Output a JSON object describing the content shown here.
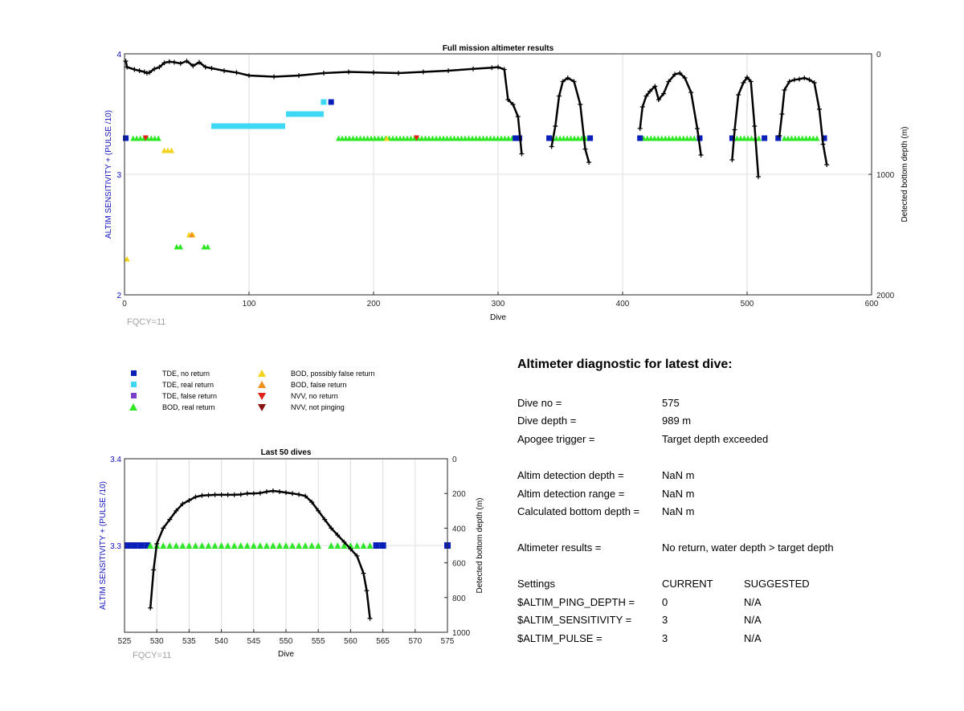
{
  "colors": {
    "tde_no_return": "#0a1fb8",
    "tde_real_return": "#3ed8f5",
    "tde_false_return": "#7a3fc8",
    "bod_real_return": "#2ee826",
    "bod_possibly_false": "#f5d21a",
    "bod_false_return": "#f0901a",
    "nvv_no_return": "#e0221a",
    "nvv_not_pinging": "#8a1010",
    "axis_left": "#1010c0",
    "fqcy": "#a0a0a0"
  },
  "legend": [
    {
      "label": "TDE, no return",
      "shape": "square",
      "color_key": "tde_no_return"
    },
    {
      "label": "TDE, real return",
      "shape": "square",
      "color_key": "tde_real_return"
    },
    {
      "label": "TDE, false return",
      "shape": "square",
      "color_key": "tde_false_return"
    },
    {
      "label": "BOD, real return",
      "shape": "triangle-up",
      "color_key": "bod_real_return"
    },
    {
      "label": "BOD, possibly false return",
      "shape": "triangle-up",
      "color_key": "bod_possibly_false"
    },
    {
      "label": "BOD, false return",
      "shape": "triangle-up",
      "color_key": "bod_false_return"
    },
    {
      "label": "NVV, no return",
      "shape": "triangle-down",
      "color_key": "nvv_no_return"
    },
    {
      "label": "NVV, not pinging",
      "shape": "triangle-down",
      "color_key": "nvv_not_pinging"
    }
  ],
  "diagnostic": {
    "title": "Altimeter diagnostic for latest dive:",
    "dive_no_label": "Dive no =",
    "dive_no": "575",
    "dive_depth_label": "Dive depth =",
    "dive_depth": "989 m",
    "apogee_label": "Apogee trigger =",
    "apogee": "Target depth exceeded",
    "altim_det_depth_label": "Altim detection depth =",
    "altim_det_depth": "NaN m",
    "altim_det_range_label": "Altim detection range =",
    "altim_det_range": "NaN m",
    "calc_bottom_label": "Calculated bottom depth =",
    "calc_bottom": "NaN m",
    "results_label": "Altimeter results =",
    "results": "No return, water depth > target depth",
    "settings_label": "Settings",
    "current_label": "CURRENT",
    "suggested_label": "SUGGESTED",
    "ping_depth_label": "$ALTIM_PING_DEPTH =",
    "ping_depth_current": "0",
    "ping_depth_suggested": "N/A",
    "sensitivity_label": "$ALTIM_SENSITIVITY =",
    "sensitivity_current": "3",
    "sensitivity_suggested": "N/A",
    "pulse_label": "$ALTIM_PULSE =",
    "pulse_current": "3",
    "pulse_suggested": "N/A"
  },
  "chart_data": [
    {
      "type": "scatter",
      "title": "Full mission altimeter results",
      "xlabel": "Dive",
      "ylabel": "ALTIM SENSITIVITY + (PULSE /10)",
      "y2label": "Detected bottom depth (m)",
      "xlim": [
        0,
        600
      ],
      "ylim": [
        2,
        4
      ],
      "y2lim": [
        0,
        2000
      ],
      "xticks": [
        0,
        100,
        200,
        300,
        400,
        500,
        600
      ],
      "yticks": [
        2,
        3,
        4
      ],
      "y2ticks": [
        0,
        1000,
        2000
      ],
      "y2_reversed": true,
      "grid": true,
      "note": "FQCY=11",
      "series": [
        {
          "name": "BOD, real return",
          "color_key": "bod_real_return",
          "marker": "triangle-up",
          "ranges": [
            [
              5,
              31,
              3.3
            ],
            [
              170,
              320,
              3.3
            ],
            [
              342,
              372,
              3.3
            ],
            [
              415,
              460,
              3.3
            ],
            [
              490,
              512,
              3.3
            ],
            [
              528,
              560,
              3.3
            ],
            [
              40,
              48,
              2.4
            ],
            [
              62,
              70,
              2.4
            ]
          ]
        },
        {
          "name": "TDE, no return",
          "color_key": "tde_no_return",
          "marker": "square",
          "ranges": [
            [
              0,
              2,
              3.3
            ],
            [
              312,
              322,
              3.3
            ],
            [
              340,
              342,
              3.3
            ],
            [
              372,
              376,
              3.3
            ],
            [
              413,
              415,
              3.3
            ],
            [
              460,
              466,
              3.3
            ],
            [
              487,
              489,
              3.3
            ],
            [
              512,
              516,
              3.3
            ],
            [
              524,
              526,
              3.3
            ],
            [
              560,
              564,
              3.3
            ],
            [
              78,
              79,
              3.4
            ],
            [
              104,
              105,
              3.4
            ],
            [
              122,
              123,
              3.4
            ],
            [
              137,
              138,
              3.5
            ],
            [
              164,
              170,
              3.6
            ]
          ]
        },
        {
          "name": "TDE, real return",
          "color_key": "tde_real_return",
          "marker": "square",
          "ranges": [
            [
              70,
              131,
              3.4
            ],
            [
              130,
              161,
              3.5
            ],
            [
              158,
              165,
              3.6
            ]
          ]
        },
        {
          "name": "BOD, possibly false return",
          "color_key": "bod_possibly_false",
          "marker": "triangle-up",
          "ranges": [
            [
              0,
              4,
              2.3
            ],
            [
              30,
              41,
              3.2
            ],
            [
              50,
              59,
              2.5
            ],
            [
              210,
              211,
              3.3
            ]
          ]
        },
        {
          "name": "BOD, false return",
          "color_key": "bod_false_return",
          "marker": "triangle-up",
          "ranges": [
            [
              52,
              58,
              2.5
            ]
          ]
        },
        {
          "name": "NVV, no return",
          "color_key": "nvv_no_return",
          "marker": "triangle-down",
          "ranges": [
            [
              15,
              21,
              3.3
            ],
            [
              234,
              235,
              3.3
            ]
          ]
        }
      ],
      "depth_segments": [
        [
          [
            1,
            60
          ],
          [
            2,
            110
          ],
          [
            8,
            130
          ],
          [
            12,
            140
          ],
          [
            16,
            150
          ],
          [
            18,
            160
          ],
          [
            20,
            155
          ],
          [
            24,
            125
          ],
          [
            28,
            110
          ],
          [
            32,
            75
          ],
          [
            36,
            65
          ],
          [
            40,
            70
          ],
          [
            45,
            80
          ],
          [
            50,
            60
          ],
          [
            55,
            100
          ],
          [
            60,
            70
          ],
          [
            65,
            110
          ],
          [
            70,
            120
          ],
          [
            80,
            140
          ],
          [
            90,
            155
          ],
          [
            100,
            180
          ],
          [
            120,
            190
          ],
          [
            140,
            180
          ],
          [
            160,
            160
          ],
          [
            180,
            150
          ],
          [
            200,
            155
          ],
          [
            220,
            160
          ],
          [
            240,
            150
          ],
          [
            260,
            140
          ],
          [
            280,
            125
          ],
          [
            295,
            115
          ],
          [
            300,
            110
          ],
          [
            305,
            130
          ],
          [
            308,
            380
          ],
          [
            312,
            420
          ],
          [
            316,
            520
          ],
          [
            319,
            830
          ]
        ],
        [
          [
            343,
            770
          ],
          [
            346,
            600
          ],
          [
            349,
            350
          ],
          [
            352,
            230
          ],
          [
            356,
            200
          ],
          [
            361,
            230
          ],
          [
            366,
            420
          ],
          [
            370,
            790
          ],
          [
            373,
            900
          ]
        ],
        [
          [
            414,
            620
          ],
          [
            416,
            440
          ],
          [
            419,
            350
          ],
          [
            422,
            310
          ],
          [
            426,
            270
          ],
          [
            429,
            380
          ],
          [
            433,
            330
          ],
          [
            437,
            230
          ],
          [
            442,
            170
          ],
          [
            446,
            160
          ],
          [
            450,
            200
          ],
          [
            455,
            320
          ],
          [
            460,
            620
          ],
          [
            463,
            840
          ]
        ],
        [
          [
            488,
            880
          ],
          [
            490,
            630
          ],
          [
            493,
            340
          ],
          [
            497,
            240
          ],
          [
            500,
            195
          ],
          [
            503,
            230
          ],
          [
            506,
            600
          ],
          [
            509,
            1020
          ]
        ],
        [
          [
            526,
            680
          ],
          [
            528,
            500
          ],
          [
            530,
            300
          ],
          [
            534,
            230
          ],
          [
            538,
            215
          ],
          [
            542,
            210
          ],
          [
            546,
            200
          ],
          [
            550,
            215
          ],
          [
            554,
            240
          ],
          [
            558,
            460
          ],
          [
            561,
            750
          ],
          [
            564,
            920
          ]
        ]
      ]
    },
    {
      "type": "scatter",
      "title": "Last 50 dives",
      "xlabel": "Dive",
      "ylabel": "ALTIM SENSITIVITY + (PULSE /10)",
      "y2label": "Detected bottom depth (m)",
      "xlim": [
        525,
        575
      ],
      "ylim": [
        3.2,
        3.4
      ],
      "y2lim": [
        0,
        1000
      ],
      "xticks": [
        525,
        530,
        535,
        540,
        545,
        550,
        555,
        560,
        565,
        570,
        575
      ],
      "yticks": [
        3.3,
        3.4
      ],
      "y2ticks": [
        0,
        200,
        400,
        600,
        800,
        1000
      ],
      "y2_reversed": true,
      "grid": true,
      "note": "FQCY=11",
      "series": [
        {
          "name": "TDE, no return",
          "color_key": "tde_no_return",
          "marker": "square",
          "x": [
            525.5,
            526.5,
            527.5,
            528.5,
            564,
            565,
            575
          ],
          "y": 3.3
        },
        {
          "name": "BOD, real return",
          "color_key": "bod_real_return",
          "marker": "triangle-up",
          "x": [
            529,
            530,
            531,
            532,
            533,
            534,
            535,
            536,
            537,
            538,
            539,
            540,
            541,
            542,
            543,
            544,
            545,
            546,
            547,
            548,
            549,
            550,
            551,
            552,
            553,
            554,
            555,
            557,
            558,
            559,
            560,
            561,
            562,
            563
          ],
          "y": 3.3
        }
      ],
      "depth": {
        "x": [
          529,
          529.5,
          530,
          531,
          532,
          533,
          534,
          535,
          536,
          537,
          538,
          539,
          540,
          541,
          542,
          543,
          544,
          545,
          546,
          547,
          548,
          549,
          550,
          551,
          552,
          553,
          554,
          555,
          556,
          557,
          558,
          559,
          560,
          561,
          562,
          562.5,
          563
        ],
        "y": [
          860,
          640,
          490,
          400,
          350,
          300,
          260,
          240,
          220,
          212,
          210,
          208,
          208,
          208,
          208,
          206,
          200,
          200,
          198,
          190,
          185,
          190,
          195,
          200,
          206,
          215,
          250,
          300,
          350,
          400,
          440,
          480,
          520,
          560,
          660,
          760,
          920
        ]
      }
    }
  ]
}
